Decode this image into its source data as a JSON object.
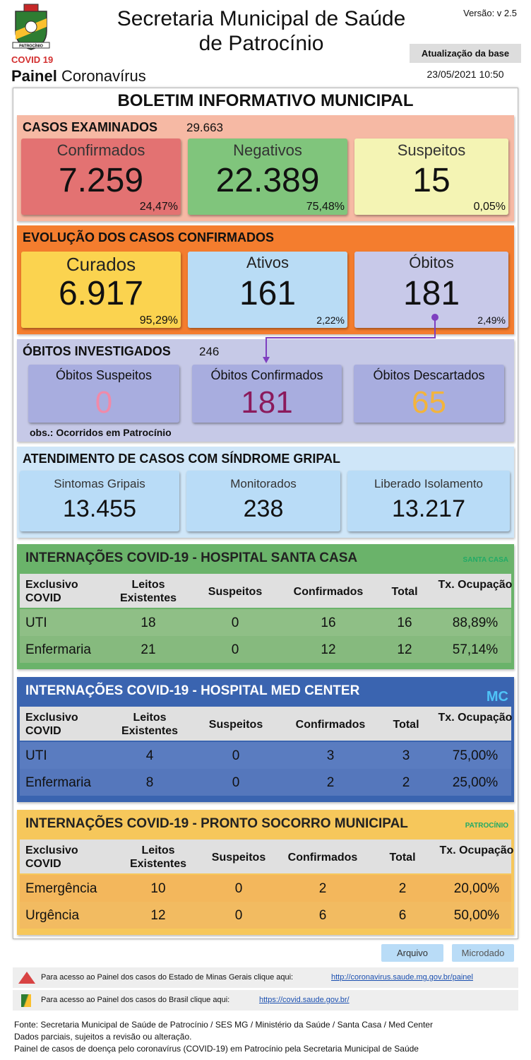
{
  "header": {
    "title_line1": "Secretaria Municipal de Saúde",
    "title_line2": "de Patrocínio",
    "version": "Versão: v 2.5",
    "update_label": "Atualização da base",
    "update_date": "23/05/2021 10:50",
    "covid_label": "COVID 19",
    "panel_bold": "Painel",
    "panel_rest": "Coronavírus",
    "logo_text": "PATROCÍNIO"
  },
  "bulletin_title": "BOLETIM INFORMATIVO MUNICIPAL",
  "examined": {
    "title": "CASOS EXAMINADOS",
    "total": "29.663",
    "cards": [
      {
        "label": "Confirmados",
        "value": "7.259",
        "percent": "24,47%"
      },
      {
        "label": "Negativos",
        "value": "22.389",
        "percent": "75,48%"
      },
      {
        "label": "Suspeitos",
        "value": "15",
        "percent": "0,05%"
      }
    ]
  },
  "evolution": {
    "title": "EVOLUÇÃO DOS CASOS CONFIRMADOS",
    "cards": [
      {
        "label": "Curados",
        "value": "6.917",
        "percent": "95,29%"
      },
      {
        "label": "Ativos",
        "value": "161",
        "percent": "2,22%"
      },
      {
        "label": "Óbitos",
        "value": "181",
        "percent": "2,49%"
      }
    ]
  },
  "deaths_investigated": {
    "title": "ÓBITOS INVESTIGADOS",
    "total": "246",
    "cards": [
      {
        "label": "Óbitos Suspeitos",
        "value": "0"
      },
      {
        "label": "Óbitos Confirmados",
        "value": "181"
      },
      {
        "label": "Óbitos Descartados",
        "value": "65"
      }
    ],
    "note": "obs.: Ocorridos em Patrocínio"
  },
  "flu": {
    "title": "ATENDIMENTO DE CASOS COM SÍNDROME GRIPAL",
    "cards": [
      {
        "label": "Sintomas Gripais",
        "value": "13.455"
      },
      {
        "label": "Monitorados",
        "value": "238"
      },
      {
        "label": "Liberado Isolamento",
        "value": "13.217"
      }
    ]
  },
  "hospitals": [
    {
      "title": "INTERNAÇÕES COVID-19 - HOSPITAL SANTA CASA",
      "logo": "SANTA CASA",
      "columns": [
        "Exclusivo COVID",
        "Leitos Existentes",
        "Suspeitos",
        "Confirmados",
        "Total",
        "Tx. Ocupação"
      ],
      "rows": [
        [
          "UTI",
          "18",
          "0",
          "16",
          "16",
          "88,89%"
        ],
        [
          "Enfermaria",
          "21",
          "0",
          "12",
          "12",
          "57,14%"
        ]
      ]
    },
    {
      "title": "INTERNAÇÕES COVID-19 - HOSPITAL MED CENTER",
      "logo": "MC",
      "columns": [
        "Exclusivo COVID",
        "Leitos Existentes",
        "Suspeitos",
        "Confirmados",
        "Total",
        "Tx. Ocupação"
      ],
      "rows": [
        [
          "UTI",
          "4",
          "0",
          "3",
          "3",
          "75,00%"
        ],
        [
          "Enfermaria",
          "8",
          "0",
          "2",
          "2",
          "25,00%"
        ]
      ]
    },
    {
      "title": "INTERNAÇÕES COVID-19 - PRONTO SOCORRO MUNICIPAL",
      "logo": "PATROCÍNIO",
      "columns": [
        "Exclusivo COVID",
        "Leitos Existentes",
        "Suspeitos",
        "Confirmados",
        "Total",
        "Tx. Ocupação"
      ],
      "rows": [
        [
          "Emergência",
          "10",
          "0",
          "2",
          "2",
          "20,00%"
        ],
        [
          "Urgência",
          "12",
          "0",
          "6",
          "6",
          "50,00%"
        ]
      ]
    }
  ],
  "buttons": [
    "Arquivo",
    "Microdado"
  ],
  "links": [
    {
      "text": "Para acesso ao Painel dos casos do Estado de Minas Gerais clique aqui:",
      "url": "http://coronavirus.saude.mg.gov.br/painel"
    },
    {
      "text": "Para acesso ao Painel dos casos do Brasil clique aqui:",
      "url": "https://covid.saude.gov.br/"
    }
  ],
  "footer": [
    "Fonte: Secretaria Municipal de Saúde de Patrocínio / SES MG / Ministério da Saúde / Santa Casa / Med Center",
    "Dados parciais, sujeitos a revisão ou alteração.",
    "Painel de casos de doença pelo coronavírus (COVID-19) em Patrocínio pela Secretaria Municipal de Saúde"
  ]
}
